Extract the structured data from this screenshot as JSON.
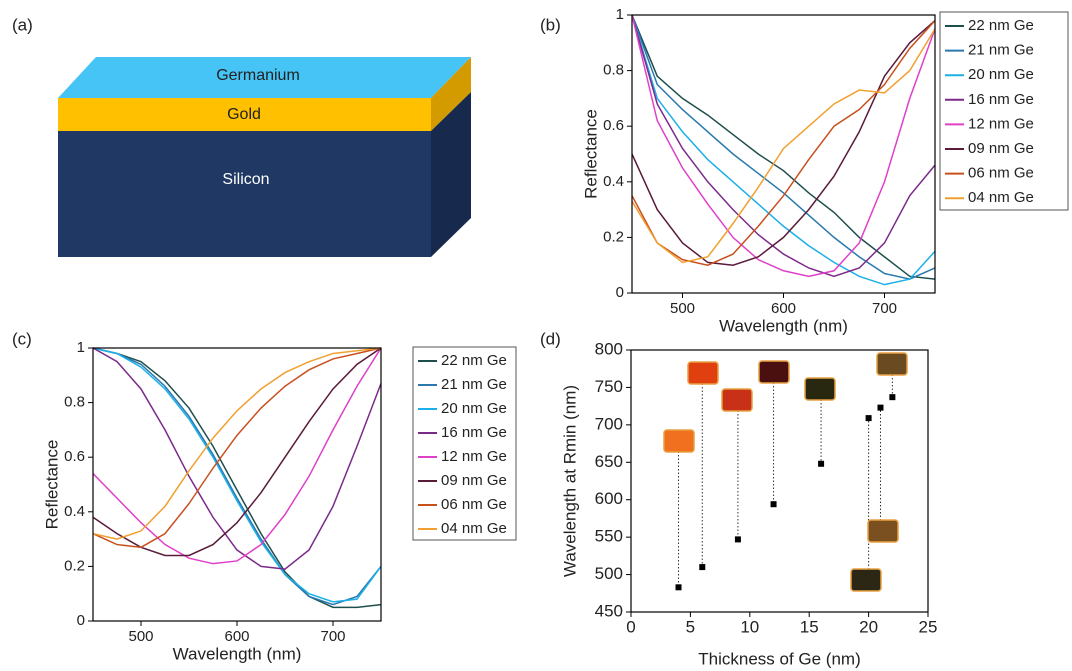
{
  "diagram": {
    "label": "(a)",
    "layers": [
      "Germanium",
      "Gold",
      "Silicon"
    ]
  },
  "chart_data": [
    {
      "type": "line",
      "label": "(b)",
      "xlabel": "Wavelength (nm)",
      "ylabel": "Reflectance",
      "x": [
        450,
        475,
        500,
        525,
        550,
        575,
        600,
        625,
        650,
        675,
        700,
        725,
        750
      ],
      "xlim": [
        450,
        750
      ],
      "ylim": [
        0,
        1
      ],
      "xticks": [
        500,
        600,
        700
      ],
      "yticks": [
        0,
        0.2,
        0.4,
        0.6,
        0.8,
        1
      ],
      "series": [
        {
          "name": "22 nm Ge",
          "color": "#1e4f4c",
          "values": [
            1.0,
            0.78,
            0.7,
            0.64,
            0.57,
            0.5,
            0.44,
            0.36,
            0.29,
            0.2,
            0.13,
            0.06,
            0.05
          ]
        },
        {
          "name": "21 nm Ge",
          "color": "#2a78ae",
          "values": [
            1.0,
            0.75,
            0.66,
            0.58,
            0.5,
            0.43,
            0.36,
            0.28,
            0.2,
            0.13,
            0.07,
            0.05,
            0.09
          ]
        },
        {
          "name": "20 nm Ge",
          "color": "#1cb0e8",
          "values": [
            1.0,
            0.7,
            0.58,
            0.48,
            0.4,
            0.32,
            0.24,
            0.17,
            0.11,
            0.06,
            0.03,
            0.05,
            0.15
          ]
        },
        {
          "name": "16 nm Ge",
          "color": "#7b2a8a",
          "values": [
            1.0,
            0.68,
            0.52,
            0.4,
            0.3,
            0.21,
            0.14,
            0.09,
            0.06,
            0.09,
            0.18,
            0.35,
            0.46
          ]
        },
        {
          "name": "12 nm Ge",
          "color": "#e040c8",
          "values": [
            1.0,
            0.62,
            0.45,
            0.32,
            0.2,
            0.12,
            0.08,
            0.06,
            0.08,
            0.18,
            0.4,
            0.7,
            0.95
          ]
        },
        {
          "name": "09 nm Ge",
          "color": "#5a1a3a",
          "values": [
            0.5,
            0.3,
            0.18,
            0.11,
            0.1,
            0.13,
            0.2,
            0.3,
            0.42,
            0.58,
            0.78,
            0.9,
            0.98
          ]
        },
        {
          "name": "06 nm Ge",
          "color": "#c8501e",
          "values": [
            0.35,
            0.18,
            0.12,
            0.1,
            0.14,
            0.24,
            0.35,
            0.48,
            0.6,
            0.66,
            0.75,
            0.88,
            0.98
          ]
        },
        {
          "name": "04 nm Ge",
          "color": "#f0a030",
          "values": [
            0.33,
            0.18,
            0.11,
            0.13,
            0.25,
            0.38,
            0.52,
            0.6,
            0.68,
            0.73,
            0.72,
            0.8,
            0.95
          ]
        }
      ]
    },
    {
      "type": "line",
      "label": "(c)",
      "xlabel": "Wavelength (nm)",
      "ylabel": "Reflectance",
      "x": [
        450,
        475,
        500,
        525,
        550,
        575,
        600,
        625,
        650,
        675,
        700,
        725,
        750
      ],
      "xlim": [
        450,
        750
      ],
      "ylim": [
        0,
        1
      ],
      "xticks": [
        500,
        600,
        700
      ],
      "yticks": [
        0,
        0.2,
        0.4,
        0.6,
        0.8,
        1
      ],
      "series": [
        {
          "name": "22 nm Ge",
          "color": "#1e4f4c",
          "values": [
            1.0,
            0.98,
            0.95,
            0.88,
            0.78,
            0.64,
            0.48,
            0.32,
            0.18,
            0.09,
            0.05,
            0.05,
            0.06
          ]
        },
        {
          "name": "21 nm Ge",
          "color": "#2a78ae",
          "values": [
            1.0,
            0.98,
            0.94,
            0.86,
            0.75,
            0.61,
            0.45,
            0.3,
            0.17,
            0.09,
            0.06,
            0.09,
            0.2
          ]
        },
        {
          "name": "20 nm Ge",
          "color": "#1cb0e8",
          "values": [
            1.0,
            0.98,
            0.93,
            0.85,
            0.74,
            0.6,
            0.44,
            0.29,
            0.17,
            0.1,
            0.07,
            0.08,
            0.2
          ]
        },
        {
          "name": "16 nm Ge",
          "color": "#7b2a8a",
          "values": [
            1.0,
            0.95,
            0.85,
            0.7,
            0.53,
            0.38,
            0.26,
            0.2,
            0.19,
            0.26,
            0.42,
            0.64,
            0.87
          ]
        },
        {
          "name": "12 nm Ge",
          "color": "#e040c8",
          "values": [
            0.54,
            0.45,
            0.36,
            0.28,
            0.23,
            0.21,
            0.22,
            0.28,
            0.39,
            0.53,
            0.7,
            0.86,
            1.0
          ]
        },
        {
          "name": "09 nm Ge",
          "color": "#5a1a3a",
          "values": [
            0.38,
            0.32,
            0.27,
            0.24,
            0.24,
            0.28,
            0.36,
            0.47,
            0.6,
            0.73,
            0.85,
            0.94,
            1.0
          ]
        },
        {
          "name": "06 nm Ge",
          "color": "#c8501e",
          "values": [
            0.32,
            0.28,
            0.27,
            0.32,
            0.43,
            0.56,
            0.68,
            0.78,
            0.86,
            0.92,
            0.96,
            0.98,
            1.0
          ]
        },
        {
          "name": "04 nm Ge",
          "color": "#f0a030",
          "values": [
            0.32,
            0.3,
            0.33,
            0.42,
            0.55,
            0.67,
            0.77,
            0.85,
            0.91,
            0.95,
            0.98,
            0.99,
            1.0
          ]
        }
      ]
    },
    {
      "type": "scatter",
      "label": "(d)",
      "xlabel": "Thickness of Ge (nm)",
      "ylabel": "Wavelength at Rmin (nm)",
      "x": [
        4,
        6,
        9,
        12,
        16,
        20,
        21,
        22
      ],
      "values": [
        483,
        510,
        547,
        594,
        648,
        709,
        723,
        737
      ],
      "color": "#000000",
      "xlim": [
        0,
        25
      ],
      "ylim": [
        450,
        800
      ],
      "xticks": [
        0,
        5,
        10,
        15,
        20,
        25
      ],
      "yticks": [
        450,
        500,
        550,
        600,
        650,
        700,
        750,
        800
      ]
    }
  ]
}
